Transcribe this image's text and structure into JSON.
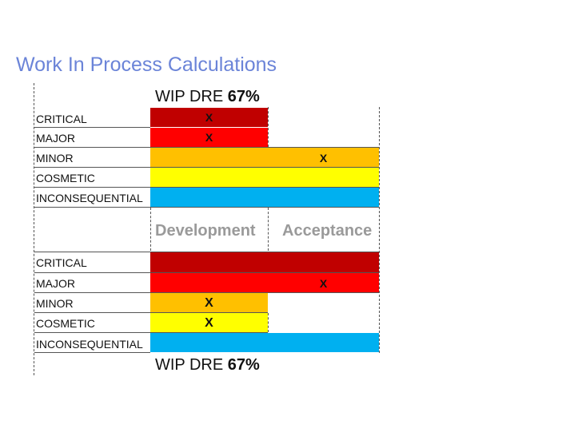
{
  "title": "Work In Process Calculations",
  "wip_top": {
    "label": "WIP DRE",
    "value": "67%"
  },
  "wip_bottom": {
    "label": "WIP DRE",
    "value": "67%"
  },
  "columns": [
    "Development",
    "Acceptance"
  ],
  "severities": [
    "CRITICAL",
    "MAJOR",
    "MINOR",
    "COSMETIC",
    "INCONSEQUENTIAL"
  ],
  "colors": {
    "critical": "#c00000",
    "major": "#ff0000",
    "minor": "#ffc000",
    "cosmetic": "#ffff00",
    "inconsequential": "#00b0f0"
  },
  "top_table": {
    "rows": [
      {
        "label": "CRITICAL",
        "development": "X",
        "acceptance": ""
      },
      {
        "label": "MAJOR",
        "development": "X",
        "acceptance": ""
      },
      {
        "label": "MINOR",
        "development": "",
        "acceptance": "X"
      },
      {
        "label": "COSMETIC",
        "development": "",
        "acceptance": ""
      },
      {
        "label": "INCONSEQUENTIAL",
        "development": "",
        "acceptance": ""
      }
    ]
  },
  "bottom_table": {
    "rows": [
      {
        "label": "CRITICAL",
        "development": "",
        "acceptance": ""
      },
      {
        "label": "MAJOR",
        "development": "",
        "acceptance": "X"
      },
      {
        "label": "MINOR",
        "development": "X",
        "acceptance": ""
      },
      {
        "label": "COSMETIC",
        "development": "X",
        "acceptance": ""
      },
      {
        "label": "INCONSEQUENTIAL",
        "development": "",
        "acceptance": ""
      }
    ]
  }
}
